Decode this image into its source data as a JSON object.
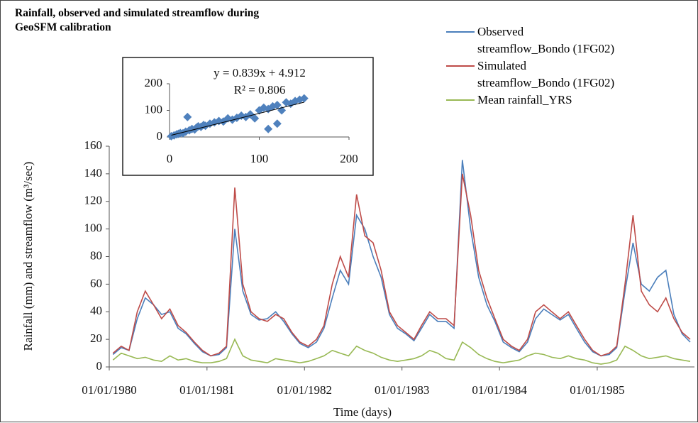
{
  "chart_data": [
    {
      "type": "line",
      "title": "Rainfall, observed and simulated streamflow during GeoSFM calibration",
      "x_label": "Time (days)",
      "y_label": "Rainfall (mm) and streamflow (m³/sec)",
      "x": [
        "15/01/1980",
        "15/02/1980",
        "15/03/1980",
        "15/04/1980",
        "15/05/1980",
        "15/06/1980",
        "15/07/1980",
        "15/08/1980",
        "15/09/1980",
        "15/10/1980",
        "15/11/1980",
        "15/12/1980",
        "15/01/1981",
        "15/02/1981",
        "15/03/1981",
        "15/04/1981",
        "15/05/1981",
        "15/06/1981",
        "15/07/1981",
        "15/08/1981",
        "15/09/1981",
        "15/10/1981",
        "15/11/1981",
        "15/12/1981",
        "15/01/1982",
        "15/02/1982",
        "15/03/1982",
        "15/04/1982",
        "15/05/1982",
        "15/06/1982",
        "15/07/1982",
        "15/08/1982",
        "15/09/1982",
        "15/10/1982",
        "15/11/1982",
        "15/12/1982",
        "15/01/1983",
        "15/02/1983",
        "15/03/1983",
        "15/04/1983",
        "15/05/1983",
        "15/06/1983",
        "15/07/1983",
        "15/08/1983",
        "15/09/1983",
        "15/10/1983",
        "15/11/1983",
        "15/12/1983",
        "15/01/1984",
        "15/02/1984",
        "15/03/1984",
        "15/04/1984",
        "15/05/1984",
        "15/06/1984",
        "15/07/1984",
        "15/08/1984",
        "15/09/1984",
        "15/10/1984",
        "15/11/1984",
        "15/12/1984",
        "15/01/1985",
        "15/02/1985",
        "15/03/1985",
        "15/04/1985",
        "15/05/1985",
        "15/06/1985",
        "15/07/1985",
        "15/08/1985",
        "15/09/1985",
        "15/10/1985",
        "15/11/1985",
        "15/12/1985"
      ],
      "series": [
        {
          "name": "Observed streamflow_Bondo (1FG02)",
          "color": "#4a7ebb",
          "values": [
            9,
            14,
            12,
            35,
            50,
            45,
            38,
            40,
            28,
            24,
            17,
            11,
            8,
            9,
            14,
            100,
            55,
            38,
            34,
            35,
            40,
            33,
            24,
            17,
            14,
            18,
            28,
            50,
            70,
            60,
            110,
            100,
            80,
            65,
            38,
            28,
            24,
            19,
            28,
            38,
            33,
            33,
            28,
            150,
            100,
            65,
            45,
            33,
            18,
            14,
            11,
            18,
            35,
            42,
            38,
            34,
            38,
            28,
            18,
            11,
            8,
            9,
            14,
            55,
            90,
            60,
            55,
            65,
            70,
            38,
            24,
            18
          ]
        },
        {
          "name": "Simulated streamflow_Bondo (1FG02)",
          "color": "#be4b48",
          "values": [
            10,
            15,
            12,
            40,
            55,
            45,
            35,
            42,
            30,
            25,
            18,
            12,
            8,
            10,
            15,
            130,
            60,
            40,
            35,
            33,
            38,
            35,
            25,
            18,
            15,
            20,
            30,
            60,
            80,
            65,
            125,
            95,
            90,
            70,
            40,
            30,
            25,
            20,
            30,
            40,
            35,
            35,
            30,
            140,
            110,
            70,
            50,
            35,
            20,
            15,
            12,
            20,
            40,
            45,
            40,
            35,
            40,
            30,
            20,
            12,
            8,
            10,
            15,
            60,
            110,
            55,
            45,
            40,
            50,
            35,
            25,
            20
          ]
        },
        {
          "name": "Mean rainfall_YRS",
          "color": "#98b954",
          "values": [
            5,
            10,
            8,
            6,
            7,
            5,
            4,
            8,
            5,
            6,
            4,
            3,
            3,
            4,
            6,
            20,
            8,
            5,
            4,
            3,
            6,
            5,
            4,
            3,
            4,
            6,
            8,
            12,
            10,
            8,
            15,
            12,
            10,
            7,
            5,
            4,
            5,
            6,
            8,
            12,
            10,
            6,
            5,
            18,
            14,
            9,
            6,
            4,
            3,
            4,
            5,
            8,
            10,
            9,
            7,
            6,
            8,
            6,
            5,
            3,
            2,
            3,
            5,
            15,
            12,
            8,
            6,
            7,
            8,
            6,
            5,
            4
          ]
        }
      ],
      "xlim": [
        "01/01/1980",
        "31/12/1985"
      ],
      "xticks": [
        "01/01/1980",
        "01/01/1981",
        "01/01/1982",
        "01/01/1983",
        "01/01/1984",
        "01/01/1985"
      ],
      "ylim": [
        0,
        160
      ],
      "yticks": [
        0,
        20,
        40,
        60,
        80,
        100,
        120,
        140,
        160
      ]
    },
    {
      "type": "scatter",
      "color": "#4f81bd",
      "x": [
        2,
        5,
        8,
        10,
        12,
        15,
        18,
        20,
        22,
        25,
        28,
        30,
        32,
        35,
        38,
        40,
        45,
        50,
        55,
        60,
        65,
        70,
        75,
        80,
        85,
        90,
        95,
        100,
        105,
        110,
        115,
        120,
        125,
        130,
        135,
        140,
        145,
        150,
        120,
        110
      ],
      "values": [
        3,
        6,
        10,
        12,
        15,
        14,
        20,
        75,
        25,
        30,
        28,
        35,
        40,
        38,
        45,
        42,
        50,
        55,
        60,
        58,
        70,
        65,
        72,
        80,
        75,
        85,
        70,
        100,
        110,
        105,
        115,
        120,
        100,
        130,
        125,
        135,
        140,
        145,
        50,
        30
      ],
      "trendline": {
        "slope": 0.839,
        "intercept": 4.912,
        "label": "y = 0.839x + 4.912"
      },
      "r2_label": "R² = 0.806",
      "xlim": [
        0,
        200
      ],
      "xticks": [
        0,
        100,
        200
      ],
      "ylim": [
        0,
        200
      ],
      "yticks": [
        0,
        100,
        200
      ]
    }
  ]
}
